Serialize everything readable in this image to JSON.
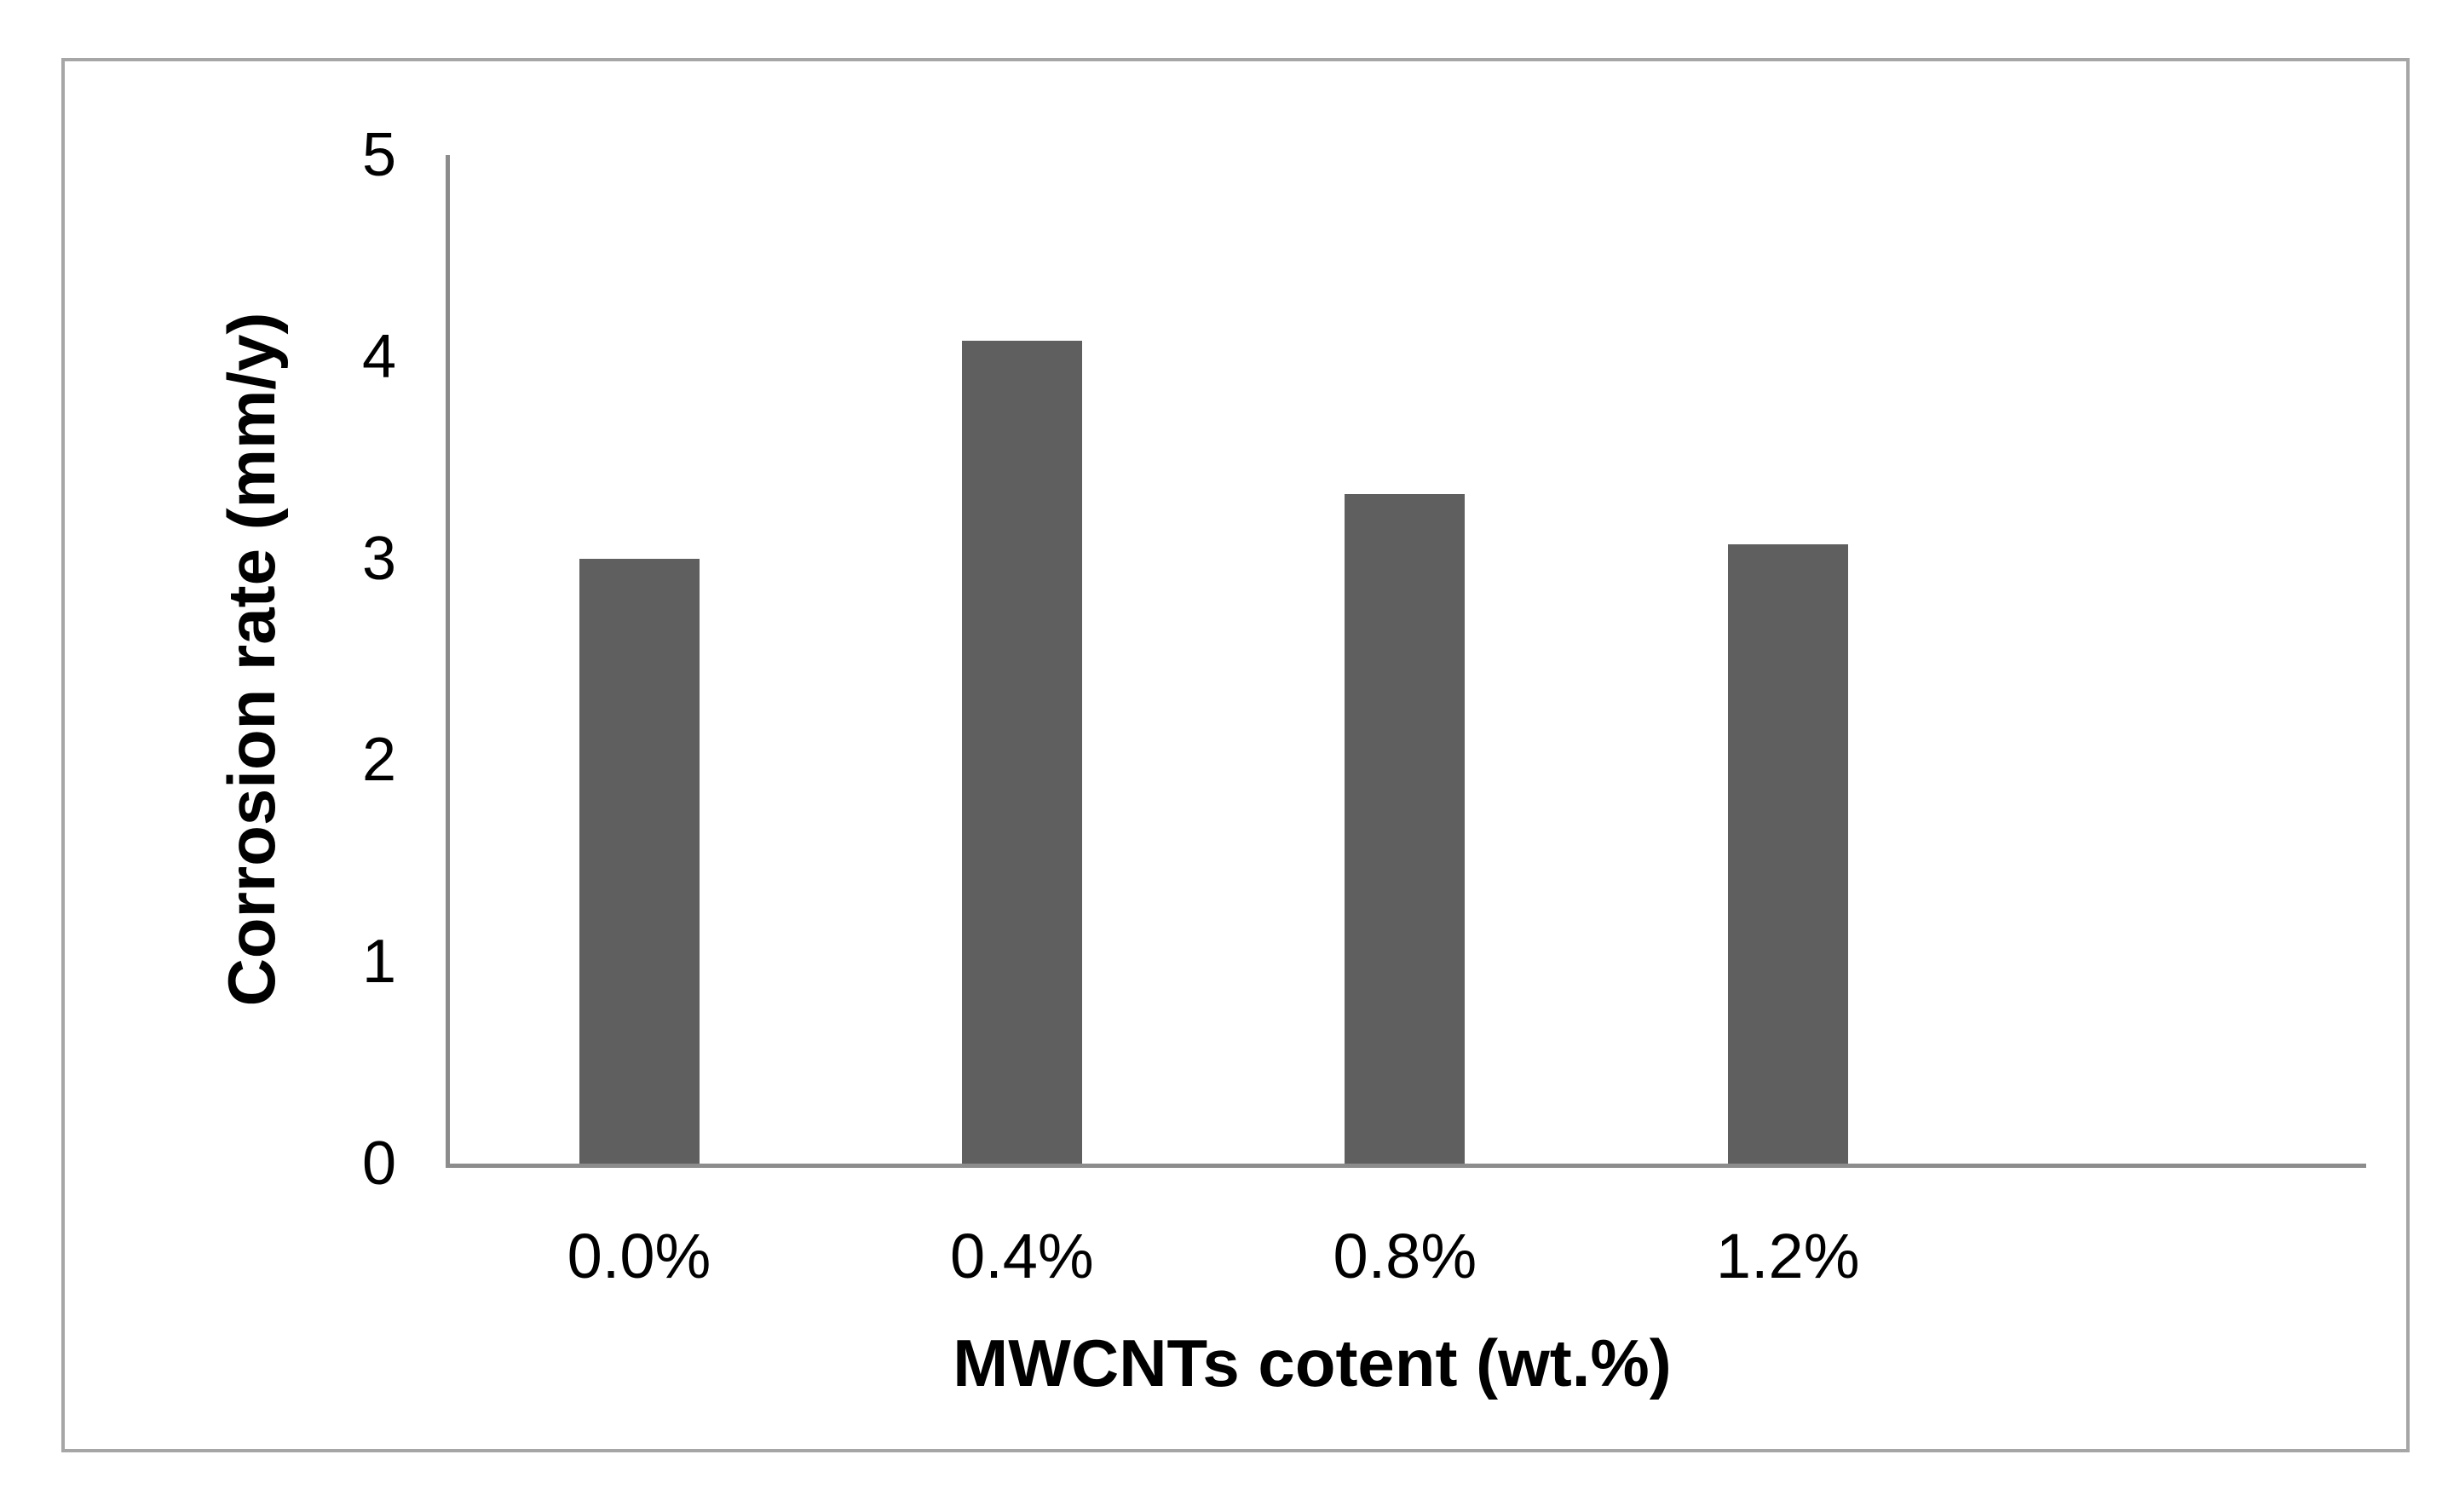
{
  "chart_data": {
    "type": "bar",
    "title": "",
    "categories": [
      "0.0%",
      "0.4%",
      "0.8%",
      "1.2%"
    ],
    "values": [
      3.0,
      4.08,
      3.32,
      3.07
    ],
    "xlabel": "MWCNTs cotent (wt.%)",
    "ylabel": "Corrosion rate (mm/y)",
    "ylim": [
      0,
      5
    ],
    "yticks": [
      0,
      1,
      2,
      3,
      4,
      5
    ],
    "grid": "off",
    "legend": "none",
    "bar_color": "#5f5f5f",
    "axis_color": "#8c8c8c",
    "border_color": "#a6a6a6",
    "text_color": "#000000"
  }
}
